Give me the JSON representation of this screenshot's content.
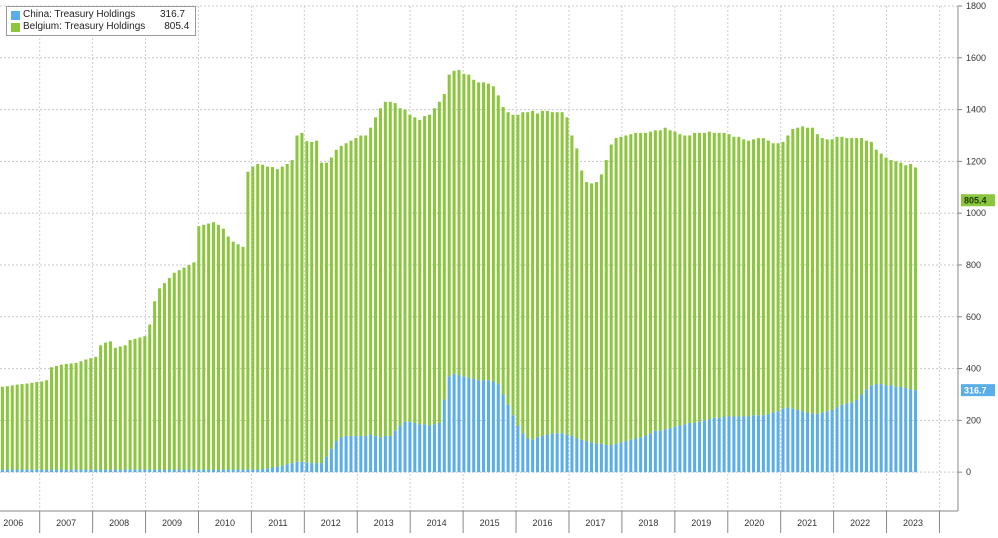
{
  "legend": [
    {
      "name": "China: Treasury Holdings",
      "last_label": "316.7",
      "color": "#5aaee8"
    },
    {
      "name": "Belgium: Treasury Holdings",
      "last_label": "805.4",
      "color": "#8cc63e"
    }
  ],
  "chart_data": {
    "type": "bar",
    "stacked": true,
    "title": "",
    "xlabel": "",
    "ylabel": "",
    "ylim": [
      -150,
      1800
    ],
    "y_ticks": [
      0,
      200,
      400,
      600,
      800,
      1000,
      1200,
      1400,
      1600,
      1800
    ],
    "x_tick_labels": [
      "2006",
      "2007",
      "2008",
      "2009",
      "2010",
      "2011",
      "2012",
      "2013",
      "2014",
      "2015",
      "2016",
      "2017",
      "2018",
      "2019",
      "2020",
      "2021",
      "2022",
      "2023"
    ],
    "x_start_year": 2005.75,
    "x_end_year": 2023.85,
    "grid": true,
    "legend_position": "top-left",
    "series": [
      {
        "name": "China: Treasury Holdings",
        "color": "#5aaee8",
        "last_value": 316.7,
        "last_value_label": "316.7",
        "values": [
          10,
          10,
          10,
          10,
          10,
          10,
          10,
          10,
          10,
          10,
          10,
          10,
          10,
          10,
          10,
          10,
          10,
          10,
          10,
          10,
          10,
          10,
          10,
          10,
          10,
          10,
          10,
          10,
          10,
          10,
          10,
          10,
          10,
          10,
          10,
          10,
          10,
          10,
          10,
          10,
          10,
          10,
          10,
          10,
          10,
          10,
          10,
          10,
          10,
          10,
          10,
          10,
          10,
          12,
          15,
          18,
          20,
          25,
          30,
          35,
          40,
          40,
          38,
          35,
          35,
          35,
          60,
          90,
          120,
          135,
          140,
          140,
          140,
          140,
          140,
          145,
          140,
          135,
          140,
          140,
          160,
          180,
          195,
          195,
          190,
          185,
          185,
          180,
          185,
          190,
          280,
          370,
          380,
          375,
          370,
          365,
          360,
          355,
          355,
          355,
          350,
          340,
          300,
          260,
          220,
          180,
          150,
          130,
          125,
          135,
          140,
          145,
          150,
          150,
          150,
          145,
          140,
          130,
          125,
          120,
          115,
          110,
          110,
          105,
          105,
          110,
          115,
          120,
          125,
          130,
          135,
          140,
          150,
          160,
          160,
          165,
          170,
          175,
          180,
          185,
          190,
          190,
          195,
          200,
          205,
          210,
          210,
          215,
          215,
          215,
          215,
          215,
          215,
          220,
          220,
          220,
          225,
          230,
          235,
          245,
          250,
          245,
          240,
          235,
          230,
          225,
          225,
          230,
          235,
          240,
          250,
          260,
          265,
          270,
          280,
          300,
          320,
          335,
          340,
          340,
          335,
          335,
          330,
          330,
          325,
          320,
          316.7
        ]
      },
      {
        "name": "Belgium: Treasury Holdings",
        "color": "#8cc63e",
        "last_value": 805.4,
        "last_value_label": "805.4",
        "values": [
          320,
          322,
          325,
          328,
          330,
          332,
          335,
          338,
          340,
          345,
          395,
          400,
          405,
          408,
          410,
          412,
          418,
          425,
          430,
          435,
          480,
          490,
          495,
          470,
          475,
          480,
          500,
          505,
          510,
          515,
          560,
          650,
          700,
          720,
          740,
          760,
          770,
          780,
          790,
          800,
          940,
          945,
          950,
          955,
          945,
          930,
          900,
          880,
          870,
          860,
          1150,
          1170,
          1180,
          1175,
          1165,
          1160,
          1150,
          1155,
          1160,
          1170,
          1260,
          1270,
          1240,
          1240,
          1245,
          1160,
          1135,
          1125,
          1125,
          1125,
          1130,
          1140,
          1150,
          1160,
          1160,
          1185,
          1230,
          1270,
          1290,
          1290,
          1265,
          1225,
          1205,
          1185,
          1180,
          1175,
          1190,
          1200,
          1220,
          1240,
          1180,
          1165,
          1170,
          1178,
          1168,
          1170,
          1155,
          1150,
          1150,
          1145,
          1140,
          1115,
          1110,
          1130,
          1160,
          1200,
          1240,
          1260,
          1270,
          1250,
          1255,
          1250,
          1240,
          1240,
          1240,
          1225,
          1160,
          1120,
          1040,
          1000,
          1000,
          1010,
          1040,
          1100,
          1160,
          1180,
          1180,
          1180,
          1180,
          1180,
          1175,
          1170,
          1165,
          1160,
          1160,
          1165,
          1150,
          1140,
          1125,
          1115,
          1110,
          1120,
          1115,
          1110,
          1110,
          1100,
          1100,
          1095,
          1090,
          1080,
          1080,
          1070,
          1065,
          1065,
          1070,
          1070,
          1055,
          1040,
          1035,
          1030,
          1050,
          1080,
          1090,
          1100,
          1100,
          1105,
          1080,
          1060,
          1050,
          1045,
          1045,
          1035,
          1025,
          1020,
          1010,
          990,
          960,
          940,
          905,
          890,
          880,
          870,
          870,
          865,
          860,
          870,
          860,
          840,
          805.4
        ]
      }
    ]
  }
}
